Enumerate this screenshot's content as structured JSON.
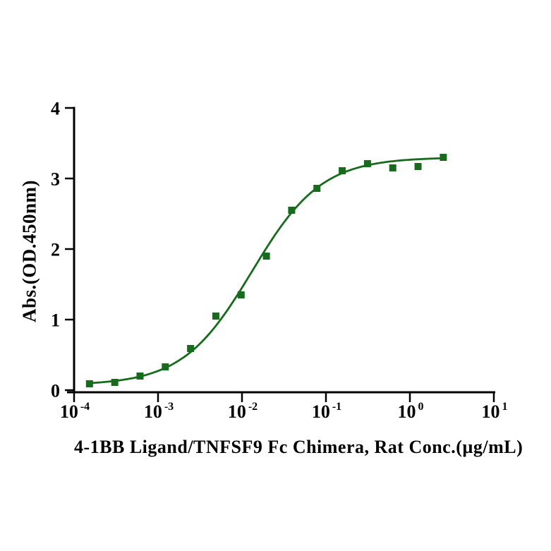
{
  "figure": {
    "background": "#ffffff"
  },
  "chart_data": {
    "type": "scatter",
    "title": "",
    "xlabel": "4-1BB Ligand/TNFSF9 Fc Chimera, Rat Conc.(µg/mL)",
    "ylabel": "Abs.(OD.450nm)",
    "x_scale": "log10",
    "xlim": [
      0.0001,
      10
    ],
    "ylim": [
      0,
      4
    ],
    "grid": false,
    "legend": "none",
    "axis_color": "#000000",
    "x_tick_base": "10",
    "x_tick_exponents": [
      -4,
      -3,
      -2,
      -1,
      0,
      1
    ],
    "y_ticks": [
      0,
      1,
      2,
      3,
      4
    ],
    "series": [
      {
        "marker": "square",
        "color": "#166b1d",
        "x": [
          0.00015259,
          0.00030518,
          0.00061035,
          0.0012207,
          0.0024414,
          0.0048828,
          0.0097656,
          0.019531,
          0.039063,
          0.078125,
          0.15625,
          0.3125,
          0.625,
          1.25,
          2.5
        ],
        "y": [
          0.09,
          0.11,
          0.2,
          0.33,
          0.59,
          1.05,
          1.35,
          1.9,
          2.55,
          2.86,
          3.11,
          3.21,
          3.15,
          3.17,
          3.3
        ]
      }
    ],
    "fit_curve": {
      "model": "4PL",
      "bottom": 0.07,
      "top": 3.3,
      "logEC50": -1.88,
      "hill_slope": 1.05,
      "color": "#166b1d"
    }
  }
}
